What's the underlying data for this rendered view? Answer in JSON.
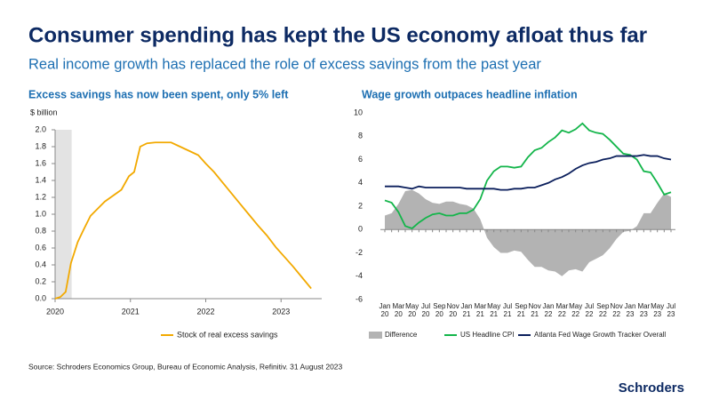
{
  "title": "Consumer spending has kept the US economy afloat thus far",
  "subtitle": "Real income growth has replaced the role of excess savings from the past year",
  "chart_data": [
    {
      "type": "line",
      "title": "Excess savings has now been spent, only 5% left",
      "y_label": "$ billion",
      "x": [
        2020.0,
        2020.07,
        2020.14,
        2020.21,
        2020.3,
        2020.38,
        2020.47,
        2020.57,
        2020.66,
        2020.77,
        2020.88,
        2020.98,
        2021.05,
        2021.13,
        2021.22,
        2021.33,
        2021.44,
        2021.54,
        2021.66,
        2021.78,
        2021.9,
        2022.0,
        2022.11,
        2022.22,
        2022.33,
        2022.45,
        2022.57,
        2022.69,
        2022.81,
        2022.93,
        2023.05,
        2023.16,
        2023.28,
        2023.4
      ],
      "series": [
        {
          "name": "Stock of real excess savings",
          "color": "#f2a900",
          "values": [
            0,
            0.02,
            0.08,
            0.42,
            0.67,
            0.82,
            0.98,
            1.07,
            1.15,
            1.22,
            1.29,
            1.45,
            1.5,
            1.8,
            1.84,
            1.85,
            1.85,
            1.85,
            1.8,
            1.75,
            1.7,
            1.6,
            1.5,
            1.38,
            1.26,
            1.13,
            1.0,
            0.87,
            0.75,
            0.61,
            0.49,
            0.38,
            0.25,
            0.12
          ]
        }
      ],
      "shaded_xrange": [
        2020,
        2020.22
      ],
      "shade_color": "#e3e3e3",
      "xlim": [
        2020,
        2023.54
      ],
      "xticks": [
        2020,
        2021,
        2022,
        2023
      ],
      "ylim": [
        0,
        2
      ],
      "yticks": [
        {
          "value": 0,
          "label": "0.0"
        },
        {
          "value": 0.2,
          "label": "0.2"
        },
        {
          "value": 0.4,
          "label": "0.4"
        },
        {
          "value": 0.6,
          "label": "0.6"
        },
        {
          "value": 0.8,
          "label": "0.8"
        },
        {
          "value": 1,
          "label": "1.0"
        },
        {
          "value": 1.2,
          "label": "1.2"
        },
        {
          "value": 1.4,
          "label": "1.4"
        },
        {
          "value": 1.6,
          "label": "1.6"
        },
        {
          "value": 1.8,
          "label": "1.8"
        },
        {
          "value": 2,
          "label": "2.0"
        }
      ]
    },
    {
      "type": "combo",
      "title": "Wage growth outpaces headline inflation",
      "categories": [
        "Jan 20",
        null,
        "Mar 20",
        null,
        "May 20",
        null,
        "Jul 20",
        null,
        "Sep 20",
        null,
        "Nov 20",
        null,
        "Jan 21",
        null,
        "Mar 21",
        null,
        "May 21",
        null,
        "Jul 21",
        null,
        "Sep 21",
        null,
        "Nov 21",
        null,
        "Jan 22",
        null,
        "Mar 22",
        null,
        "May 22",
        null,
        "Jul 22",
        null,
        "Sep 22",
        null,
        "Nov 22",
        null,
        "Jan 23",
        null,
        "Mar 23",
        null,
        "May 23",
        null,
        "Jul 23"
      ],
      "series": [
        {
          "name": "Difference",
          "type": "area",
          "color": "#b3b3b3",
          "values": [
            1.2,
            1.4,
            2.2,
            3.3,
            3.4,
            3.1,
            2.6,
            2.3,
            2.2,
            2.4,
            2.4,
            2.2,
            2.1,
            1.8,
            0.9,
            -0.7,
            -1.5,
            -2.0,
            -2.0,
            -1.8,
            -1.9,
            -2.6,
            -3.2,
            -3.2,
            -3.5,
            -3.6,
            -4.0,
            -3.5,
            -3.4,
            -3.6,
            -2.8,
            -2.5,
            -2.2,
            -1.6,
            -0.8,
            -0.2,
            -0.1,
            0.3,
            1.4,
            1.4,
            2.3,
            3.1,
            2.8
          ]
        },
        {
          "name": "US Headline CPI",
          "type": "line",
          "color": "#13b54a",
          "values": [
            2.5,
            2.3,
            1.5,
            0.3,
            0.1,
            0.6,
            1.0,
            1.3,
            1.4,
            1.2,
            1.2,
            1.4,
            1.4,
            1.7,
            2.6,
            4.2,
            5.0,
            5.4,
            5.4,
            5.3,
            5.4,
            6.2,
            6.8,
            7.0,
            7.5,
            7.9,
            8.5,
            8.3,
            8.6,
            9.1,
            8.5,
            8.3,
            8.2,
            7.7,
            7.1,
            6.5,
            6.4,
            6.0,
            5.0,
            4.9,
            4.0,
            3.0,
            3.2
          ]
        },
        {
          "name": "Atlanta Fed Wage Growth Tracker Overall",
          "type": "line",
          "color": "#0b1f5c",
          "values": [
            3.7,
            3.7,
            3.7,
            3.6,
            3.5,
            3.7,
            3.6,
            3.6,
            3.6,
            3.6,
            3.6,
            3.6,
            3.5,
            3.5,
            3.5,
            3.5,
            3.5,
            3.4,
            3.4,
            3.5,
            3.5,
            3.6,
            3.6,
            3.8,
            4.0,
            4.3,
            4.5,
            4.8,
            5.2,
            5.5,
            5.7,
            5.8,
            6.0,
            6.1,
            6.3,
            6.3,
            6.3,
            6.3,
            6.4,
            6.3,
            6.3,
            6.1,
            6.0
          ]
        }
      ],
      "ylim": [
        -6,
        10
      ],
      "yticks": [
        -6,
        -4,
        -2,
        0,
        2,
        4,
        6,
        8,
        10
      ]
    }
  ],
  "source": "Source: Schroders Economics Group, Bureau of Economic Analysis, Refinitiv. 31 August 2023",
  "logo": "Schroders"
}
